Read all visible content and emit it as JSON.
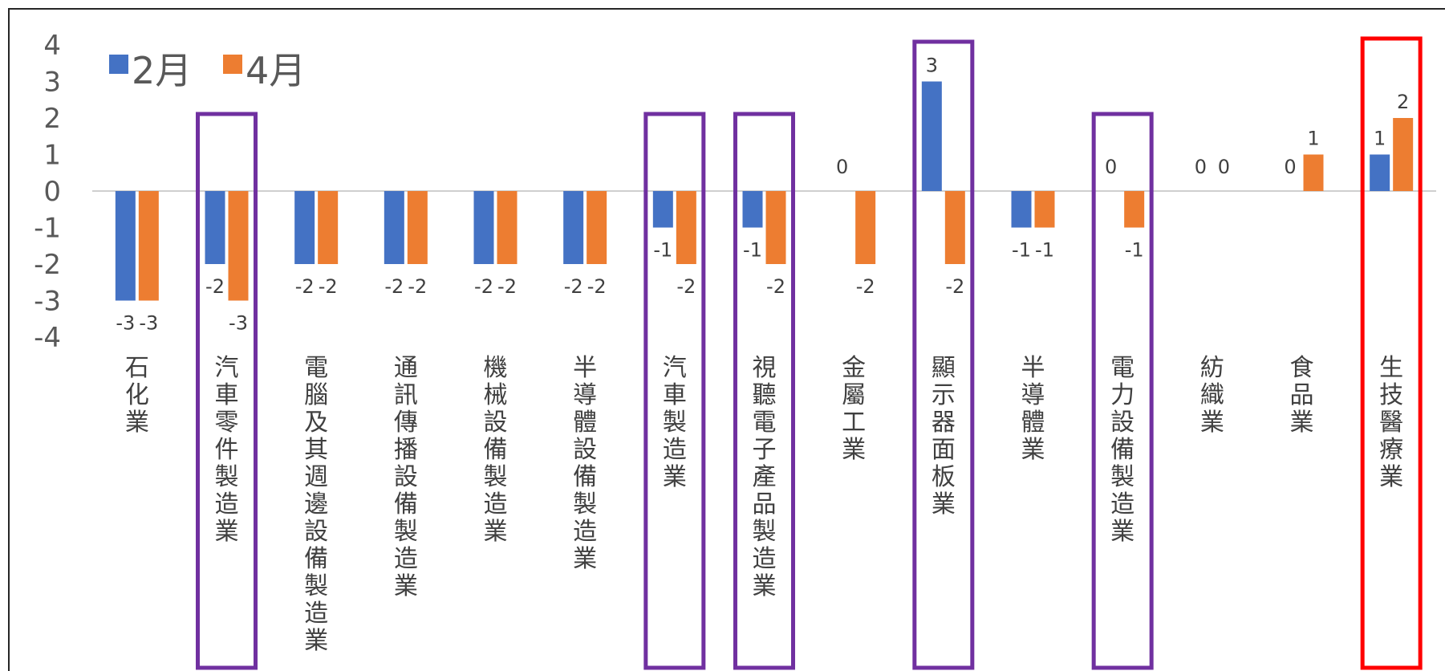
{
  "chart_data": {
    "type": "bar",
    "title": "",
    "xlabel": "",
    "ylabel": "",
    "ylim": [
      -4,
      4
    ],
    "yticks": [
      "4",
      "3",
      "2",
      "1",
      "0",
      "-1",
      "-2",
      "-3",
      "-4"
    ],
    "legend_position": "top-left",
    "categories": [
      "石化業",
      "汽車零件製造業",
      "電腦及其週邊設備製造業",
      "通訊傳播設備製造業",
      "機械設備製造業",
      "半導體設備製造業",
      "汽車製造業",
      "視聽電子產品製造業",
      "金屬工業",
      "顯示器面板業",
      "半導體業",
      "電力設備製造業",
      "紡織業",
      "食品業",
      "生技醫療業"
    ],
    "series": [
      {
        "name": "2月",
        "color": "#4472C4",
        "values": [
          -3,
          -2,
          -2,
          -2,
          -2,
          -2,
          -1,
          -1,
          0,
          3,
          -1,
          0,
          0,
          0,
          1
        ]
      },
      {
        "name": "4月",
        "color": "#ED7D31",
        "values": [
          -3,
          -3,
          -2,
          -2,
          -2,
          -2,
          -2,
          -2,
          -2,
          -2,
          -1,
          -1,
          0,
          1,
          2
        ]
      }
    ],
    "highlights": [
      {
        "category": "汽車零件製造業",
        "color": "#7030A0"
      },
      {
        "category": "汽車製造業",
        "color": "#7030A0"
      },
      {
        "category": "視聽電子產品製造業",
        "color": "#7030A0"
      },
      {
        "category": "顯示器面板業",
        "color": "#7030A0"
      },
      {
        "category": "電力設備製造業",
        "color": "#7030A0"
      },
      {
        "category": "生技醫療業",
        "color": "#FF0000"
      }
    ]
  }
}
